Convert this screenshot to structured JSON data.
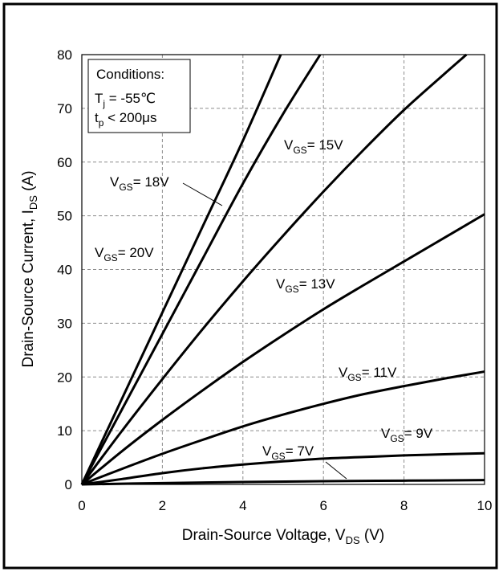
{
  "chart_data": {
    "type": "line",
    "title": "",
    "xlabel": "Drain-Source Voltage, V",
    "xlabel_sub": "DS",
    "xlabel_unit": " (V)",
    "ylabel": "Drain-Source Current, I",
    "ylabel_sub": "DS",
    "ylabel_unit": " (A)",
    "xlim": [
      0,
      10
    ],
    "ylim": [
      0,
      80
    ],
    "x_ticks": [
      "0",
      "2",
      "4",
      "6",
      "8",
      "10"
    ],
    "y_ticks": [
      "0",
      "10",
      "20",
      "30",
      "40",
      "50",
      "60",
      "70",
      "80"
    ],
    "grid": true,
    "conditions": {
      "title": "Conditions:",
      "line1_main": "T",
      "line1_sub": "j",
      "line1_rest": " = -55℃",
      "line2_main": "t",
      "line2_sub": "p",
      "line2_rest": " < 200μs"
    },
    "series": [
      {
        "label_main": "V",
        "label_sub": "GS",
        "label_rest": "= 20V",
        "points": [
          [
            0,
            0
          ],
          [
            1,
            16
          ],
          [
            2,
            32
          ],
          [
            3,
            48
          ],
          [
            4,
            64
          ],
          [
            4.94,
            80
          ]
        ]
      },
      {
        "label_main": "V",
        "label_sub": "GS",
        "label_rest": "= 18V",
        "points": [
          [
            0,
            0
          ],
          [
            1,
            14
          ],
          [
            2,
            28
          ],
          [
            3,
            42
          ],
          [
            4,
            56
          ],
          [
            5,
            69
          ],
          [
            5.92,
            80
          ]
        ]
      },
      {
        "label_main": "V",
        "label_sub": "GS",
        "label_rest": "= 15V",
        "points": [
          [
            0,
            0
          ],
          [
            1,
            10
          ],
          [
            2,
            19.6
          ],
          [
            3,
            28.9
          ],
          [
            4,
            37.8
          ],
          [
            5,
            46.3
          ],
          [
            6,
            54.5
          ],
          [
            7,
            62.3
          ],
          [
            8,
            69.7
          ],
          [
            9,
            76.4
          ],
          [
            9.55,
            80
          ]
        ]
      },
      {
        "label_main": "V",
        "label_sub": "GS",
        "label_rest": "= 13V",
        "points": [
          [
            0,
            0
          ],
          [
            1,
            6.2
          ],
          [
            2,
            12
          ],
          [
            3,
            17.5
          ],
          [
            4,
            22.8
          ],
          [
            5,
            27.8
          ],
          [
            6,
            32.6
          ],
          [
            7,
            37.1
          ],
          [
            8,
            41.5
          ],
          [
            9,
            45.9
          ],
          [
            10,
            50.3
          ]
        ]
      },
      {
        "label_main": "V",
        "label_sub": "GS",
        "label_rest": "= 11V",
        "points": [
          [
            0,
            0
          ],
          [
            1,
            2.9
          ],
          [
            2,
            5.7
          ],
          [
            3,
            8.3
          ],
          [
            4,
            10.8
          ],
          [
            5,
            13
          ],
          [
            6,
            15
          ],
          [
            7,
            16.8
          ],
          [
            8,
            18.3
          ],
          [
            9,
            19.7
          ],
          [
            10,
            21
          ]
        ]
      },
      {
        "label_main": "V",
        "label_sub": "GS",
        "label_rest": "= 9V",
        "points": [
          [
            0,
            0
          ],
          [
            1,
            1
          ],
          [
            2,
            2.1
          ],
          [
            3,
            3
          ],
          [
            4,
            3.7
          ],
          [
            5,
            4.3
          ],
          [
            6,
            4.8
          ],
          [
            7,
            5.1
          ],
          [
            8,
            5.4
          ],
          [
            9,
            5.6
          ],
          [
            10,
            5.8
          ]
        ]
      },
      {
        "label_main": "V",
        "label_sub": "GS",
        "label_rest": "= 7V",
        "points": [
          [
            0,
            0
          ],
          [
            2,
            0.25
          ],
          [
            4,
            0.45
          ],
          [
            6,
            0.6
          ],
          [
            8,
            0.7
          ],
          [
            10,
            0.8
          ]
        ]
      }
    ]
  }
}
